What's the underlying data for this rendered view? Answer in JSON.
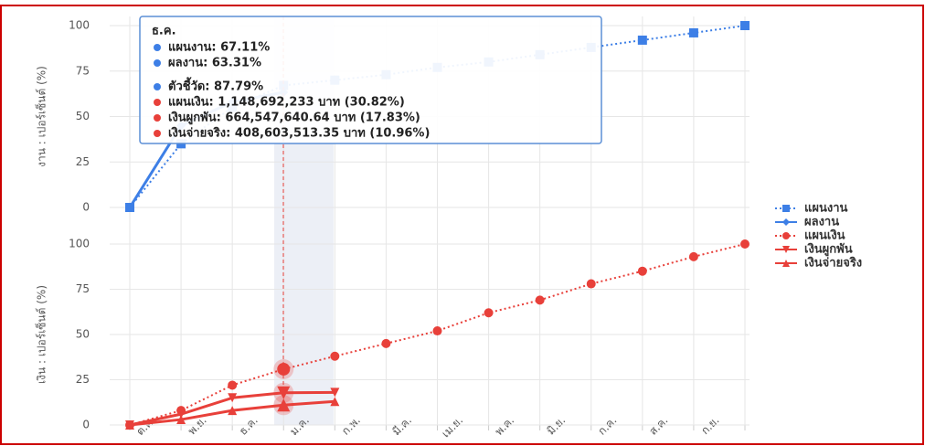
{
  "chart_data": [
    {
      "type": "line",
      "ylabel": "งาน : เปอร์เซ็นต์ (%)",
      "ylim": [
        0,
        100
      ],
      "yticks": [
        0,
        25,
        50,
        75,
        100
      ],
      "grid": true,
      "series": [
        {
          "name": "แผนงาน",
          "color": "#3d7fe6",
          "marker": "square",
          "dash": true,
          "values": [
            0,
            35,
            55,
            67.11,
            70,
            73,
            77,
            80,
            84,
            88,
            92,
            96,
            100
          ]
        },
        {
          "name": "ผลงาน",
          "color": "#3d7fe6",
          "marker": "diamond",
          "dash": false,
          "values": [
            0,
            45,
            58,
            63.31,
            null,
            null,
            null,
            null,
            null,
            null,
            null,
            null,
            null
          ]
        }
      ],
      "tooltip": {
        "title": "ธ.ค.",
        "items": [
          {
            "text": "แผนงาน: 67.11%",
            "color": "#3d7fe6"
          },
          {
            "text": "ผลงาน: 63.31%",
            "color": "#3d7fe6"
          },
          {
            "text": "ตัวชี้วัด: 87.79%",
            "color": "#3d7fe6"
          },
          {
            "text": "แผนเงิน: 1,148,692,233 บาท (30.82%)",
            "color": "#e8403a"
          },
          {
            "text": "เงินผูกพัน: 664,547,640.64 บาท (17.83%)",
            "color": "#e8403a"
          },
          {
            "text": "เงินจ่ายจริง: 408,603,513.35 บาท (10.96%)",
            "color": "#e8403a"
          }
        ]
      }
    },
    {
      "type": "line",
      "ylabel": "เงิน : เปอร์เซ็นต์ (%)",
      "ylim": [
        0,
        100
      ],
      "yticks": [
        0,
        25,
        50,
        75,
        100
      ],
      "grid": true,
      "categories": [
        null,
        "ต.ค.",
        "พ.ย.",
        "ธ.ค.",
        "ม.ค.",
        "ก.พ.",
        "มี.ค.",
        "เม.ย.",
        "พ.ค.",
        "มิ.ย.",
        "ก.ค.",
        "ส.ค.",
        "ก.ย."
      ],
      "series": [
        {
          "name": "แผนเงิน",
          "color": "#e8403a",
          "marker": "circle",
          "dash": true,
          "values": [
            0,
            8,
            22,
            30.82,
            38,
            45,
            52,
            62,
            69,
            78,
            85,
            93,
            100
          ]
        },
        {
          "name": "เงินผูกพัน",
          "color": "#e8403a",
          "marker": "triangle-down",
          "dash": false,
          "values": [
            0,
            6,
            15,
            17.83,
            18,
            null,
            null,
            null,
            null,
            null,
            null,
            null,
            null
          ]
        },
        {
          "name": "เงินจ่ายจริง",
          "color": "#e8403a",
          "marker": "triangle",
          "dash": false,
          "values": [
            0,
            3,
            8,
            10.96,
            13,
            null,
            null,
            null,
            null,
            null,
            null,
            null,
            null
          ]
        }
      ]
    }
  ]
}
